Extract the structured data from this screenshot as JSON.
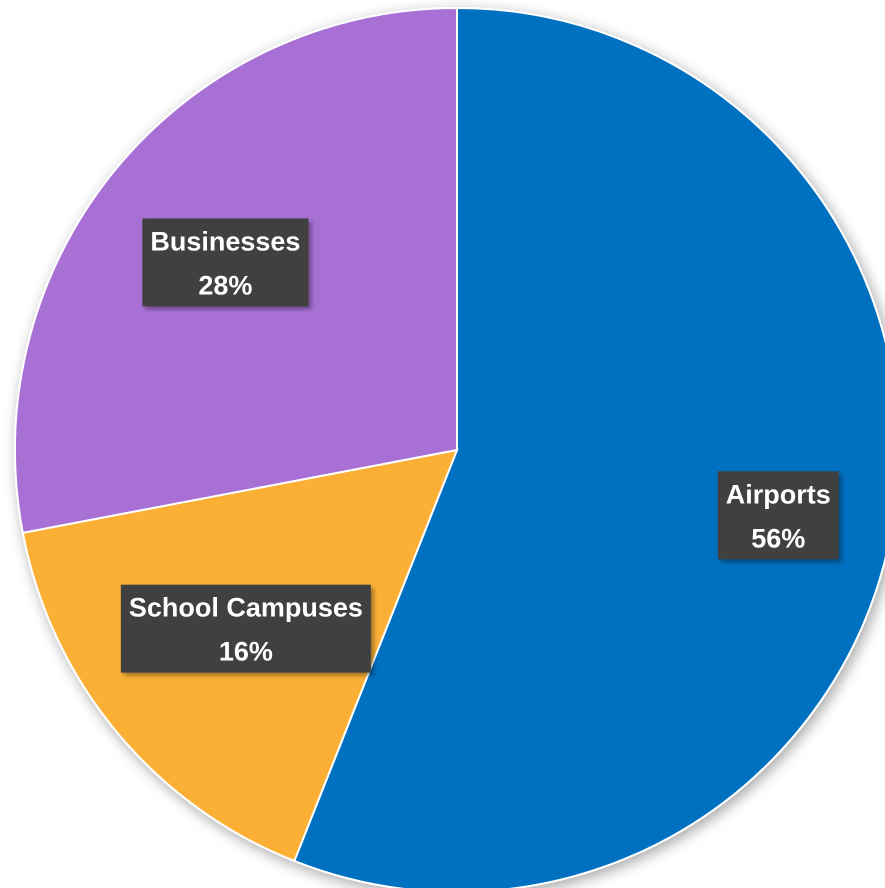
{
  "chart_data": {
    "type": "pie",
    "title": "",
    "start_angle_deg": 0,
    "direction": "clockwise",
    "legend": "none",
    "slices": [
      {
        "label": "Airports",
        "value": 56,
        "value_label": "56%",
        "color": "#0070C0"
      },
      {
        "label": "School Campuses",
        "value": 16,
        "value_label": "16%",
        "color": "#FBB034"
      },
      {
        "label": "Businesses",
        "value": 28,
        "value_label": "28%",
        "color": "#A86FD5"
      }
    ]
  }
}
